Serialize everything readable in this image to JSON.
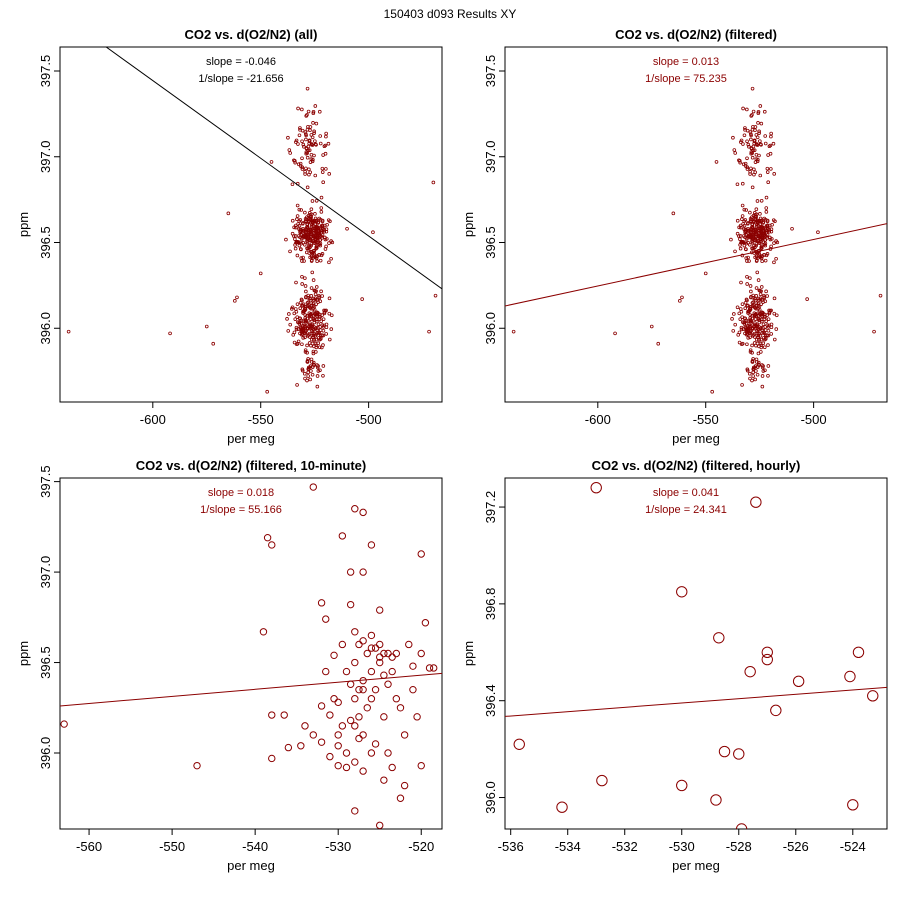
{
  "figure_title": "150403   d093   Results XY",
  "colors": {
    "points": "#8B0000",
    "fit_all": "#000000",
    "fit": "#8B0000",
    "frame": "#000000"
  },
  "chart_data": [
    {
      "type": "scatter",
      "title": "CO2 vs. d(O2/N2) (all)",
      "xlabel": "per meg",
      "ylabel": "ppm",
      "xlim": [
        -643,
        -466
      ],
      "ylim": [
        395.57,
        397.64
      ],
      "xticks": [
        -600,
        -550,
        -500
      ],
      "xtick_labels": [
        "-600",
        "-550",
        "-500"
      ],
      "yticks": [
        396.0,
        396.5,
        397.0,
        397.5
      ],
      "ytick_labels": [
        "396.0",
        "396.5",
        "397.0",
        "397.5"
      ],
      "slope_text": "slope = -0.046",
      "inv_slope_text": "1/slope = -21.656",
      "annotation_color": "#000000",
      "fit_color": "#000000",
      "fit_line": {
        "slope": -0.046,
        "points": [
          [
            -621.6,
            397.64
          ],
          [
            -466.0,
            396.23
          ]
        ]
      },
      "point_size": "small",
      "clusters_note": "dense point cloud around -540..-515",
      "series": [
        {
          "name": "points",
          "color": "#8B0000",
          "n": 650
        }
      ],
      "outliers": [
        [
          -639,
          395.98
        ],
        [
          -592,
          395.97
        ],
        [
          -575,
          396.01
        ],
        [
          -572,
          395.91
        ],
        [
          -565,
          396.67
        ],
        [
          -562,
          396.16
        ],
        [
          -561,
          396.18
        ],
        [
          -547,
          395.63
        ],
        [
          -550,
          396.32
        ],
        [
          -545,
          396.97
        ],
        [
          -510,
          396.58
        ],
        [
          -503,
          396.17
        ],
        [
          -498,
          396.56
        ],
        [
          -472,
          395.98
        ],
        [
          -470,
          396.85
        ],
        [
          -469,
          396.19
        ]
      ]
    },
    {
      "type": "scatter",
      "title": "CO2 vs. d(O2/N2) (filtered)",
      "xlabel": "per meg",
      "ylabel": "ppm",
      "xlim": [
        -643,
        -466
      ],
      "ylim": [
        395.57,
        397.64
      ],
      "xticks": [
        -600,
        -550,
        -500
      ],
      "xtick_labels": [
        "-600",
        "-550",
        "-500"
      ],
      "yticks": [
        396.0,
        396.5,
        397.0,
        397.5
      ],
      "ytick_labels": [
        "396.0",
        "396.5",
        "397.0",
        "397.5"
      ],
      "slope_text": "slope = 0.013",
      "inv_slope_text": "1/slope = 75.235",
      "annotation_color": "#8B0000",
      "fit_color": "#8B0000",
      "fit_line": {
        "slope": 0.013,
        "points": [
          [
            -643,
            396.13
          ],
          [
            -466,
            396.61
          ]
        ]
      },
      "point_size": "small",
      "series": [
        {
          "name": "points",
          "color": "#8B0000",
          "n": 640
        }
      ],
      "outliers": [
        [
          -639,
          395.98
        ],
        [
          -592,
          395.97
        ],
        [
          -575,
          396.01
        ],
        [
          -572,
          395.91
        ],
        [
          -565,
          396.67
        ],
        [
          -562,
          396.16
        ],
        [
          -561,
          396.18
        ],
        [
          -547,
          395.63
        ],
        [
          -550,
          396.32
        ],
        [
          -545,
          396.97
        ],
        [
          -510,
          396.58
        ],
        [
          -503,
          396.17
        ],
        [
          -498,
          396.56
        ],
        [
          -472,
          395.98
        ],
        [
          -469,
          396.19
        ]
      ]
    },
    {
      "type": "scatter",
      "title": "CO2 vs. d(O2/N2) (filtered, 10-minute)",
      "xlabel": "per meg",
      "ylabel": "ppm",
      "xlim": [
        -563.5,
        -517.5
      ],
      "ylim": [
        395.58,
        397.52
      ],
      "xticks": [
        -560,
        -550,
        -540,
        -530,
        -520
      ],
      "xtick_labels": [
        "-560",
        "-550",
        "-540",
        "-530",
        "-520"
      ],
      "yticks": [
        396.0,
        396.5,
        397.0,
        397.5
      ],
      "ytick_labels": [
        "396.0",
        "396.5",
        "397.0",
        "397.5"
      ],
      "slope_text": "slope = 0.018",
      "inv_slope_text": "1/slope = 55.166",
      "annotation_color": "#8B0000",
      "fit_color": "#8B0000",
      "fit_line": {
        "slope": 0.018,
        "points": [
          [
            -563.5,
            396.26
          ],
          [
            -517.5,
            396.44
          ]
        ]
      },
      "point_size": "medium",
      "series": [
        {
          "name": "10-minute means",
          "color": "#8B0000",
          "points": [
            [
              -563,
              396.16
            ],
            [
              -547,
              395.93
            ],
            [
              -539,
              396.67
            ],
            [
              -538.5,
              397.19
            ],
            [
              -538,
              397.15
            ],
            [
              -538,
              396.21
            ],
            [
              -538,
              395.97
            ],
            [
              -536.5,
              396.21
            ],
            [
              -536,
              396.03
            ],
            [
              -534.5,
              396.04
            ],
            [
              -534,
              396.15
            ],
            [
              -533,
              397.47
            ],
            [
              -532,
              396.83
            ],
            [
              -532,
              396.26
            ],
            [
              -532,
              396.06
            ],
            [
              -531.5,
              396.74
            ],
            [
              -531,
              396.21
            ],
            [
              -531,
              395.98
            ],
            [
              -530.5,
              396.54
            ],
            [
              -530,
              396.28
            ],
            [
              -530,
              396.1
            ],
            [
              -530,
              396.04
            ],
            [
              -529.5,
              397.2
            ],
            [
              -529.5,
              396.6
            ],
            [
              -529,
              396.45
            ],
            [
              -529,
              396.0
            ],
            [
              -529,
              395.92
            ],
            [
              -528.5,
              397.0
            ],
            [
              -528.5,
              396.82
            ],
            [
              -528.5,
              396.38
            ],
            [
              -528.5,
              396.18
            ],
            [
              -528,
              397.35
            ],
            [
              -528,
              396.67
            ],
            [
              -528,
              396.5
            ],
            [
              -528,
              396.3
            ],
            [
              -528,
              396.15
            ],
            [
              -528,
              395.95
            ],
            [
              -527.5,
              396.6
            ],
            [
              -527.5,
              396.35
            ],
            [
              -527.5,
              396.2
            ],
            [
              -527.5,
              396.08
            ],
            [
              -527,
              397.33
            ],
            [
              -527,
              397.0
            ],
            [
              -527,
              396.62
            ],
            [
              -527,
              396.4
            ],
            [
              -527,
              396.1
            ],
            [
              -527,
              395.9
            ],
            [
              -526.5,
              396.25
            ],
            [
              -526.5,
              396.55
            ],
            [
              -526,
              397.15
            ],
            [
              -526,
              396.58
            ],
            [
              -526,
              396.45
            ],
            [
              -526,
              396.0
            ],
            [
              -525.5,
              396.35
            ],
            [
              -525.5,
              396.05
            ],
            [
              -525,
              396.79
            ],
            [
              -525,
              396.6
            ],
            [
              -525,
              396.5
            ],
            [
              -525,
              395.6
            ],
            [
              -524.5,
              396.43
            ],
            [
              -524.5,
              396.2
            ],
            [
              -524,
              396.55
            ],
            [
              -524,
              396.38
            ],
            [
              -524,
              396.0
            ],
            [
              -523.5,
              396.53
            ],
            [
              -523.5,
              395.92
            ],
            [
              -523,
              396.55
            ],
            [
              -523,
              396.3
            ],
            [
              -522.5,
              396.25
            ],
            [
              -522,
              396.1
            ],
            [
              -522,
              395.82
            ],
            [
              -521.5,
              396.6
            ],
            [
              -521,
              396.48
            ],
            [
              -521,
              396.35
            ],
            [
              -520.5,
              396.2
            ],
            [
              -520,
              397.1
            ],
            [
              -520,
              396.55
            ],
            [
              -520,
              395.93
            ],
            [
              -519.5,
              396.72
            ],
            [
              -519,
              396.47
            ],
            [
              -518.5,
              396.47
            ],
            [
              -524.5,
              395.85
            ],
            [
              -522.5,
              395.75
            ],
            [
              -526,
              396.3
            ],
            [
              -528,
              395.68
            ],
            [
              -530,
              395.93
            ],
            [
              -527,
              396.35
            ],
            [
              -526,
              396.65
            ],
            [
              -525.5,
              396.58
            ],
            [
              -525,
              396.53
            ],
            [
              -524.5,
              396.55
            ],
            [
              -523.5,
              396.45
            ],
            [
              -529.5,
              396.15
            ],
            [
              -530.5,
              396.3
            ],
            [
              -531.5,
              396.45
            ],
            [
              -533,
              396.1
            ]
          ]
        }
      ]
    },
    {
      "type": "scatter",
      "title": "CO2 vs. d(O2/N2) (filtered, hourly)",
      "xlabel": "per meg",
      "ylabel": "ppm",
      "xlim": [
        -536.2,
        -522.8
      ],
      "ylim": [
        395.87,
        397.32
      ],
      "xticks": [
        -536,
        -534,
        -532,
        -530,
        -528,
        -526,
        -524
      ],
      "xtick_labels": [
        "-536",
        "-534",
        "-532",
        "-530",
        "-528",
        "-526",
        "-524"
      ],
      "yticks": [
        396.0,
        396.4,
        396.8,
        397.2
      ],
      "ytick_labels": [
        "396.0",
        "396.4",
        "396.8",
        "397.2"
      ],
      "slope_text": "slope = 0.041",
      "inv_slope_text": "1/slope = 24.341",
      "annotation_color": "#8B0000",
      "fit_color": "#8B0000",
      "fit_line": {
        "slope": 0.041,
        "points": [
          [
            -536.2,
            396.335
          ],
          [
            -522.8,
            396.455
          ]
        ]
      },
      "point_size": "large",
      "series": [
        {
          "name": "hourly means",
          "color": "#8B0000",
          "points": [
            [
              -535.7,
              396.22
            ],
            [
              -534.2,
              395.96
            ],
            [
              -533.0,
              397.28
            ],
            [
              -532.8,
              396.07
            ],
            [
              -530.0,
              396.85
            ],
            [
              -530.0,
              396.05
            ],
            [
              -528.8,
              395.99
            ],
            [
              -528.7,
              396.66
            ],
            [
              -528.5,
              396.19
            ],
            [
              -528.0,
              396.18
            ],
            [
              -527.9,
              395.87
            ],
            [
              -527.6,
              396.52
            ],
            [
              -527.4,
              397.22
            ],
            [
              -527.0,
              396.6
            ],
            [
              -527.0,
              396.57
            ],
            [
              -526.7,
              396.36
            ],
            [
              -525.9,
              396.48
            ],
            [
              -524.1,
              396.5
            ],
            [
              -524.0,
              395.97
            ],
            [
              -523.8,
              396.6
            ],
            [
              -523.3,
              396.42
            ]
          ]
        }
      ]
    }
  ]
}
